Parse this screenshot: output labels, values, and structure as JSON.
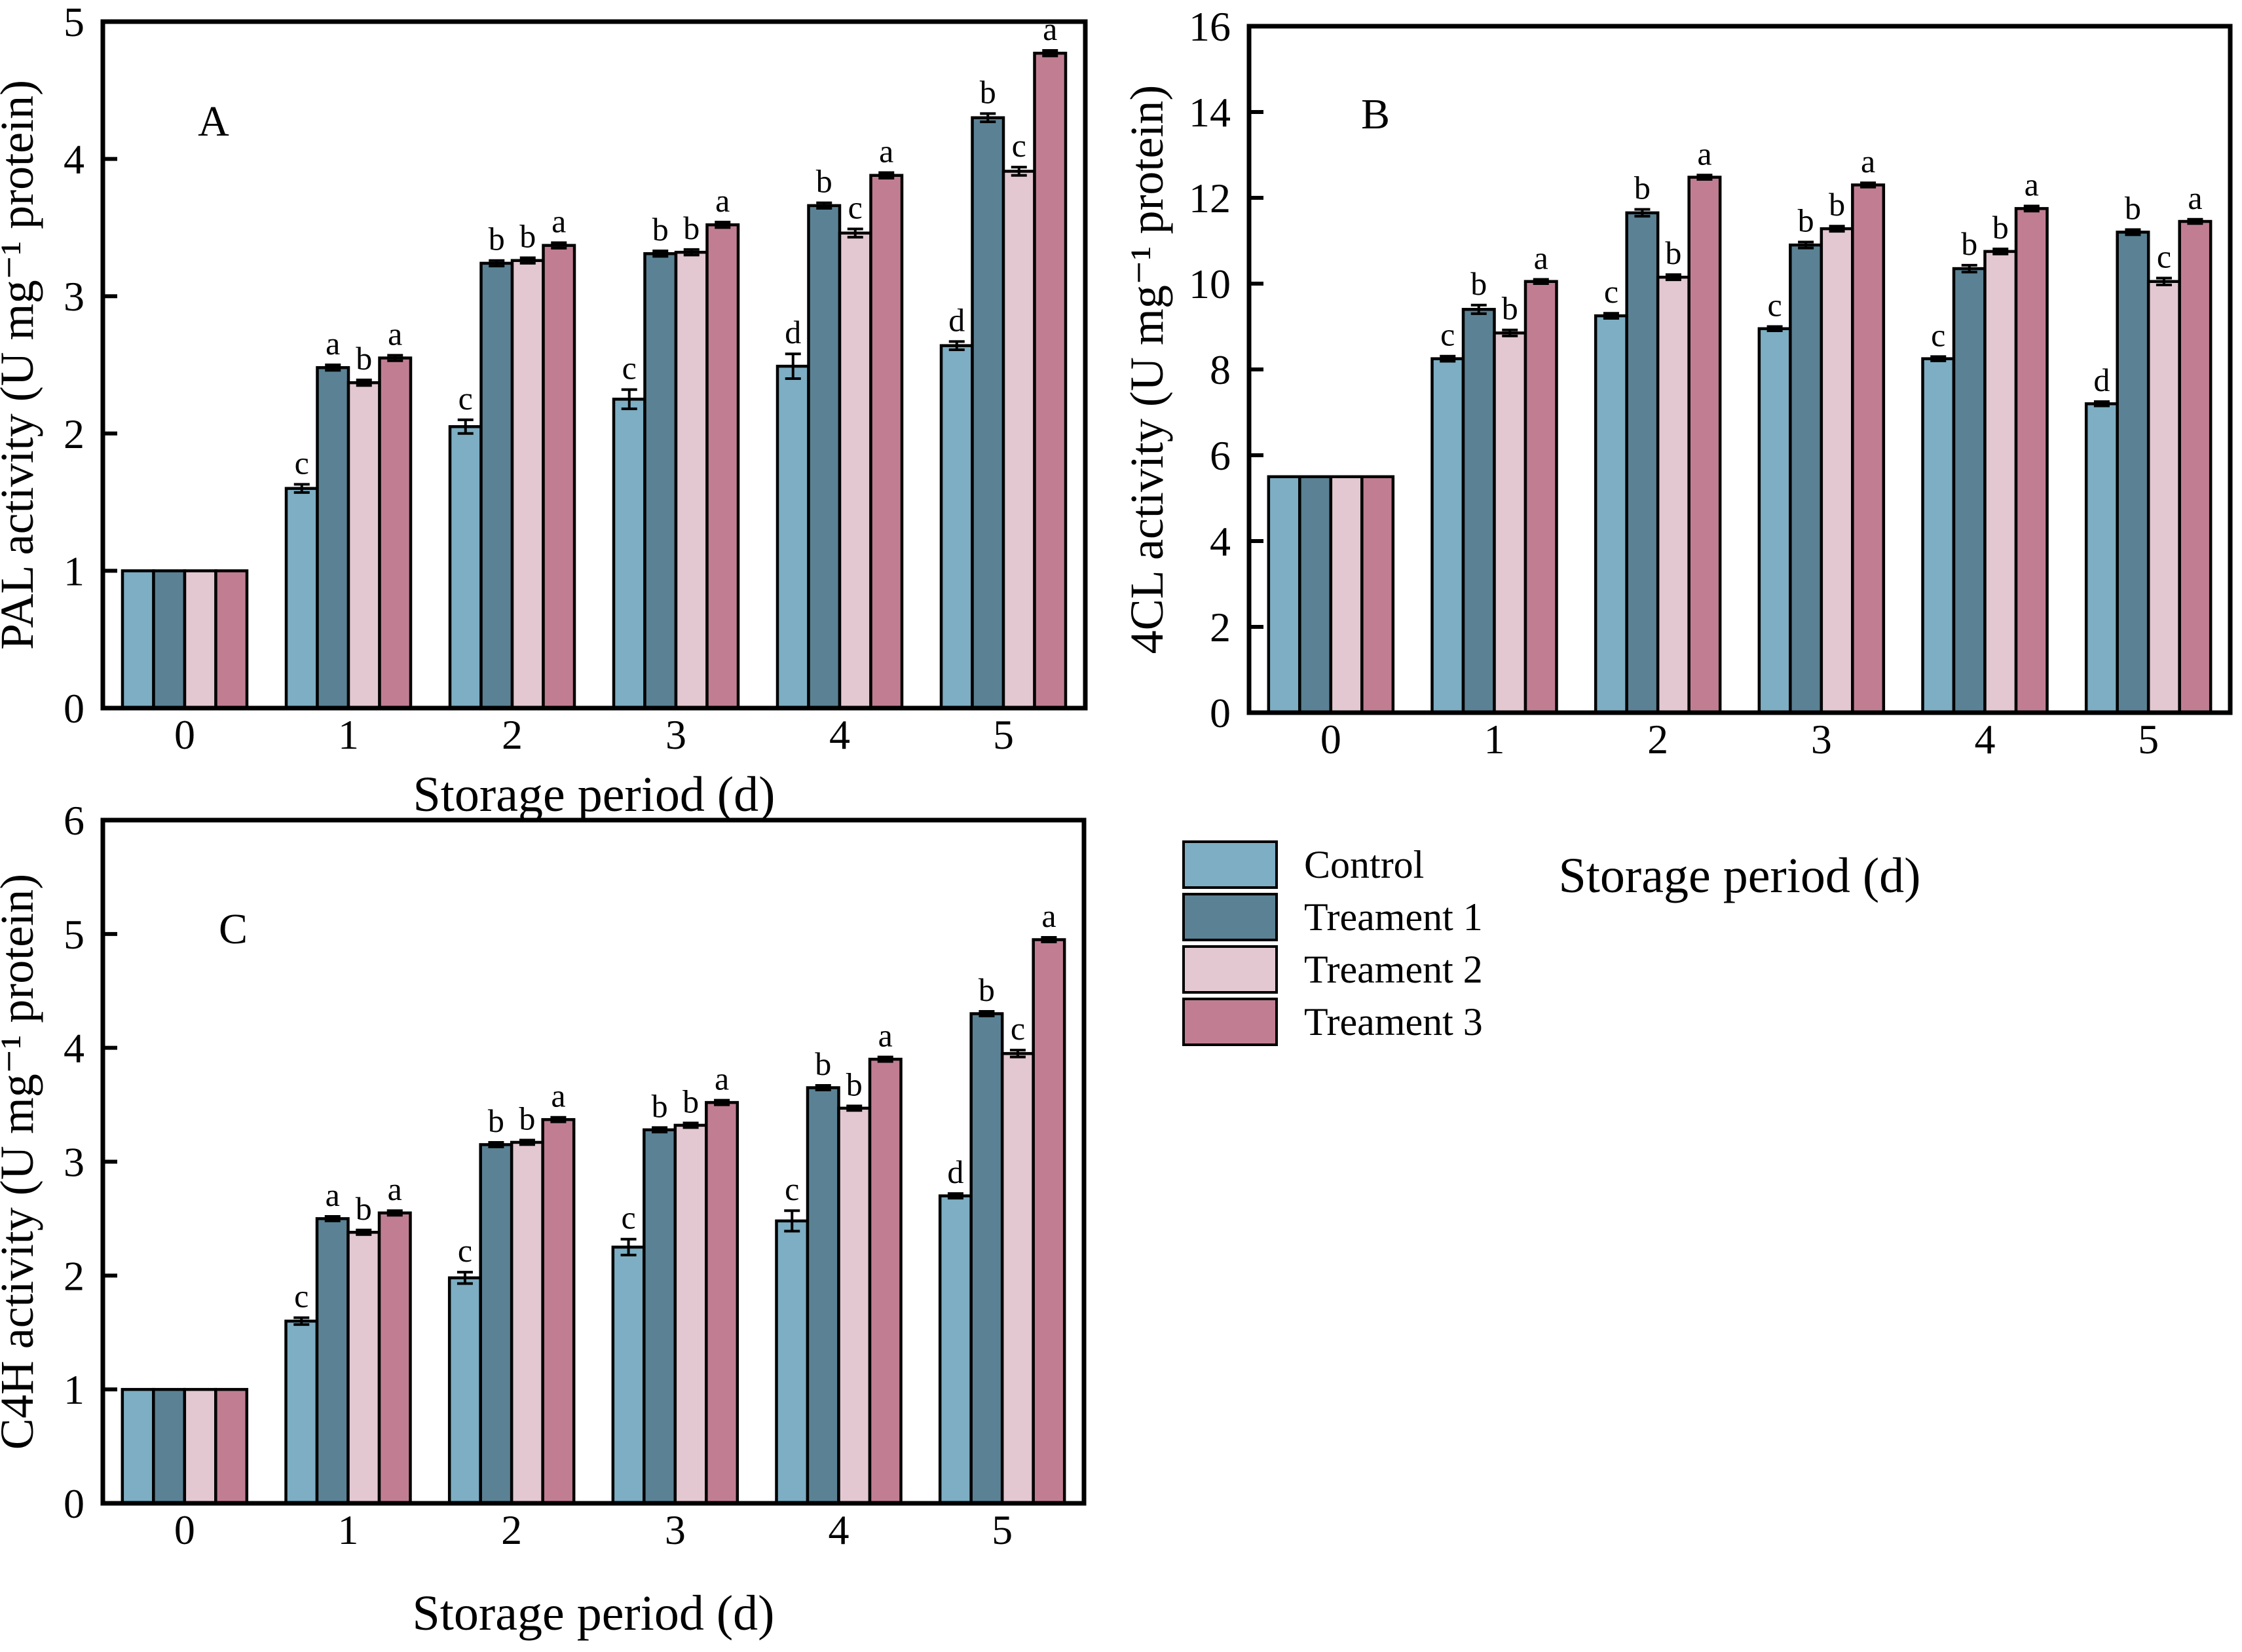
{
  "figure": {
    "background": "#ffffff",
    "text_color": "#000000",
    "bar_border_color": "#000000",
    "series_colors": [
      "#7DAEC3",
      "#5A8294",
      "#E3C8D1",
      "#C17E93"
    ]
  },
  "legend": {
    "items": [
      {
        "label": "Control",
        "color": "#7DAEC3"
      },
      {
        "label": "Treament 1",
        "color": "#5A8294"
      },
      {
        "label": "Treament 2",
        "color": "#E3C8D1"
      },
      {
        "label": "Treament 3",
        "color": "#C17E93"
      }
    ]
  },
  "chart_data": [
    {
      "id": "A",
      "type": "bar",
      "panel_label": "A",
      "xlabel": "Storage period (d)",
      "ylabel": "PAL activity (U mg⁻¹ protein)",
      "ylim": [
        0,
        5
      ],
      "ytick_step": 1,
      "grid": false,
      "categories": [
        "0",
        "1",
        "2",
        "3",
        "4",
        "5"
      ],
      "series": [
        {
          "name": "Control",
          "values": [
            1.0,
            1.6,
            2.05,
            2.25,
            2.49,
            2.64
          ],
          "errors": [
            0,
            0.03,
            0.05,
            0.07,
            0.09,
            0.03
          ],
          "letters": [
            "",
            "c",
            "c",
            "c",
            "d",
            "d"
          ]
        },
        {
          "name": "Treament 1",
          "values": [
            1.0,
            2.48,
            3.24,
            3.31,
            3.66,
            4.3
          ],
          "errors": [
            0,
            0.02,
            0.02,
            0.02,
            0.02,
            0.03
          ],
          "letters": [
            "",
            "a",
            "b",
            "b",
            "b",
            "b"
          ]
        },
        {
          "name": "Treament 2",
          "values": [
            1.0,
            2.37,
            3.26,
            3.32,
            3.46,
            3.91
          ],
          "errors": [
            0,
            0.02,
            0.02,
            0.02,
            0.03,
            0.03
          ],
          "letters": [
            "",
            "b",
            "b",
            "b",
            "c",
            "c"
          ]
        },
        {
          "name": "Treament 3",
          "values": [
            1.0,
            2.55,
            3.37,
            3.52,
            3.88,
            4.77
          ],
          "errors": [
            0,
            0.02,
            0.02,
            0.02,
            0.02,
            0.02
          ],
          "letters": [
            "",
            "a",
            "a",
            "a",
            "a",
            "a"
          ]
        }
      ]
    },
    {
      "id": "B",
      "type": "bar",
      "panel_label": "B",
      "xlabel": "Storage period (d)",
      "ylabel": "4CL activity (U mg⁻¹ protein)",
      "ylim": [
        0,
        16
      ],
      "ytick_step": 2,
      "grid": false,
      "categories": [
        "0",
        "1",
        "2",
        "3",
        "4",
        "5"
      ],
      "series": [
        {
          "name": "Control",
          "values": [
            5.5,
            8.25,
            9.25,
            8.95,
            8.25,
            7.2
          ],
          "errors": [
            0,
            0.06,
            0.06,
            0.05,
            0.05,
            0.05
          ],
          "letters": [
            "",
            "c",
            "c",
            "c",
            "c",
            "d"
          ]
        },
        {
          "name": "Treament 1",
          "values": [
            5.5,
            9.4,
            11.65,
            10.9,
            10.35,
            11.2
          ],
          "errors": [
            0,
            0.1,
            0.08,
            0.07,
            0.08,
            0.06
          ],
          "letters": [
            "",
            "b",
            "b",
            "b",
            "b",
            "b"
          ]
        },
        {
          "name": "Treament 2",
          "values": [
            5.5,
            8.85,
            10.15,
            11.28,
            10.75,
            10.05
          ],
          "errors": [
            0,
            0.07,
            0.06,
            0.06,
            0.06,
            0.08
          ],
          "letters": [
            "",
            "b",
            "b",
            "b",
            "b",
            "c"
          ]
        },
        {
          "name": "Treament 3",
          "values": [
            5.5,
            10.05,
            12.48,
            12.3,
            11.75,
            11.45
          ],
          "errors": [
            0,
            0.05,
            0.05,
            0.05,
            0.06,
            0.05
          ],
          "letters": [
            "",
            "a",
            "a",
            "a",
            "a",
            "a"
          ]
        }
      ]
    },
    {
      "id": "C",
      "type": "bar",
      "panel_label": "C",
      "xlabel": "Storage period (d)",
      "ylabel": "C4H activity (U mg⁻¹ protein)",
      "ylim": [
        0,
        6
      ],
      "ytick_step": 1,
      "grid": false,
      "categories": [
        "0",
        "1",
        "2",
        "3",
        "4",
        "5"
      ],
      "series": [
        {
          "name": "Control",
          "values": [
            1.0,
            1.6,
            1.98,
            2.25,
            2.48,
            2.7
          ],
          "errors": [
            0,
            0.03,
            0.05,
            0.07,
            0.09,
            0.02
          ],
          "letters": [
            "",
            "c",
            "c",
            "c",
            "c",
            "d"
          ]
        },
        {
          "name": "Treament 1",
          "values": [
            1.0,
            2.5,
            3.15,
            3.28,
            3.65,
            4.3
          ],
          "errors": [
            0,
            0.02,
            0.02,
            0.02,
            0.02,
            0.02
          ],
          "letters": [
            "",
            "a",
            "b",
            "b",
            "b",
            "b"
          ]
        },
        {
          "name": "Treament 2",
          "values": [
            1.0,
            2.38,
            3.17,
            3.32,
            3.47,
            3.95
          ],
          "errors": [
            0,
            0.02,
            0.02,
            0.02,
            0.02,
            0.03
          ],
          "letters": [
            "",
            "b",
            "b",
            "b",
            "b",
            "c"
          ]
        },
        {
          "name": "Treament 3",
          "values": [
            1.0,
            2.55,
            3.37,
            3.52,
            3.9,
            4.95
          ],
          "errors": [
            0,
            0.02,
            0.02,
            0.02,
            0.02,
            0.02
          ],
          "letters": [
            "",
            "a",
            "a",
            "a",
            "a",
            "a"
          ]
        }
      ]
    }
  ]
}
